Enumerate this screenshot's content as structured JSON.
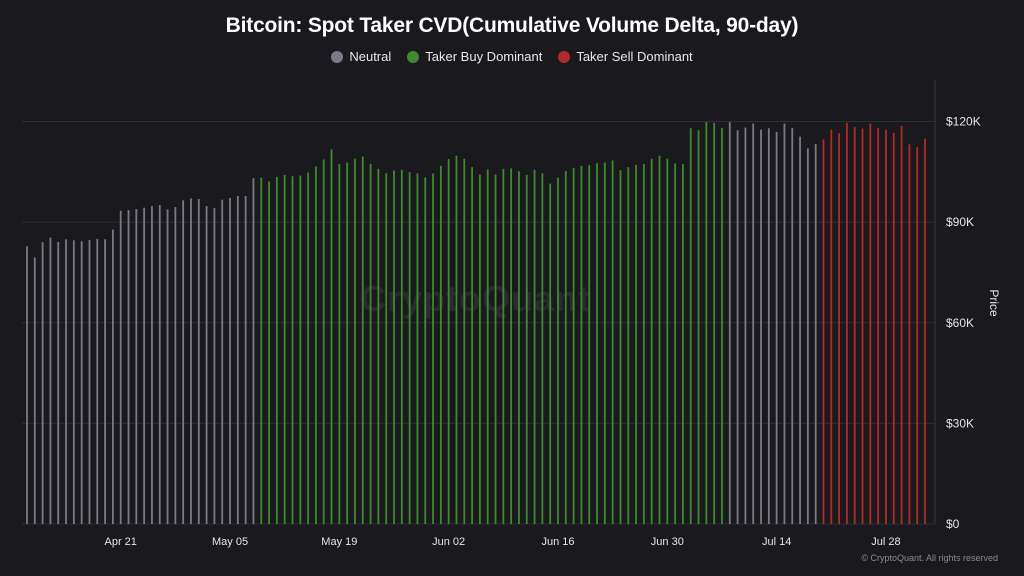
{
  "chart_data": {
    "type": "bar",
    "title": "Bitcoin: Spot Taker CVD(Cumulative Volume Delta, 90-day)",
    "ylabel": "Price",
    "ylim": [
      0,
      130000
    ],
    "yticks": [
      "$0",
      "$30K",
      "$60K",
      "$90K",
      "$120K"
    ],
    "ytick_values": [
      0,
      30000,
      60000,
      90000,
      120000
    ],
    "xtick_labels": [
      "Apr 21",
      "May 05",
      "May 19",
      "Jun 02",
      "Jun 16",
      "Jun 30",
      "Jul 14",
      "Jul 28"
    ],
    "xtick_index": [
      12,
      26,
      40,
      54,
      68,
      82,
      96,
      110
    ],
    "grid": true,
    "legend": {
      "position": "top",
      "entries": [
        {
          "name": "Neutral",
          "color": "#7a7a86"
        },
        {
          "name": "Taker Buy Dominant",
          "color": "#3f8a2e"
        },
        {
          "name": "Taker Sell Dominant",
          "color": "#b02a2a"
        }
      ]
    },
    "values": [
      82800,
      79500,
      84000,
      85400,
      84100,
      84900,
      84600,
      84300,
      84700,
      85000,
      84900,
      87800,
      93400,
      93600,
      93900,
      94300,
      94800,
      95100,
      93800,
      94500,
      96500,
      97100,
      96900,
      94800,
      94200,
      96700,
      97200,
      97800,
      97800,
      103100,
      103300,
      102100,
      103500,
      104100,
      103700,
      103900,
      104800,
      106600,
      108700,
      111700,
      107300,
      107800,
      108900,
      109600,
      107400,
      105900,
      104600,
      105400,
      105600,
      104900,
      104500,
      103300,
      104500,
      106800,
      108800,
      109800,
      108900,
      106400,
      104200,
      105700,
      104200,
      105900,
      106000,
      105200,
      104100,
      105600,
      104600,
      101500,
      103300,
      105200,
      106100,
      106800,
      107000,
      107600,
      107800,
      108400,
      105500,
      106400,
      107100,
      107300,
      108900,
      109800,
      108900,
      107500,
      107300,
      118000,
      117400,
      119800,
      119600,
      118100,
      119800,
      117400,
      118200,
      119400,
      117600,
      118000,
      116900,
      119400,
      118100,
      115500,
      112000,
      113300,
      114700,
      117600,
      116500,
      119600,
      118400,
      117900,
      119400,
      118000,
      117600,
      116600,
      118700,
      113200,
      112400,
      114900
    ],
    "categories_note": "",
    "color_states": "NNNNNNNNNNNNNNNNNNNNNNNNNNNNNNBBBBBBBBBBBBBBBBBBBBBBBBBBBBBBBBBBBBBBBBBBBBBBBBBBBBBBBBBBBBNNNNNNNNNNNNSSSSSSSSSSSSSSSSS"
  },
  "footer": {
    "credit": "© CryptoQuant. All rights reserved",
    "watermark": "CryptoQuant"
  },
  "colors": {
    "background": "#1a1a1e",
    "grid": "#2e2e34",
    "axis_text": "#e6e6ea"
  }
}
